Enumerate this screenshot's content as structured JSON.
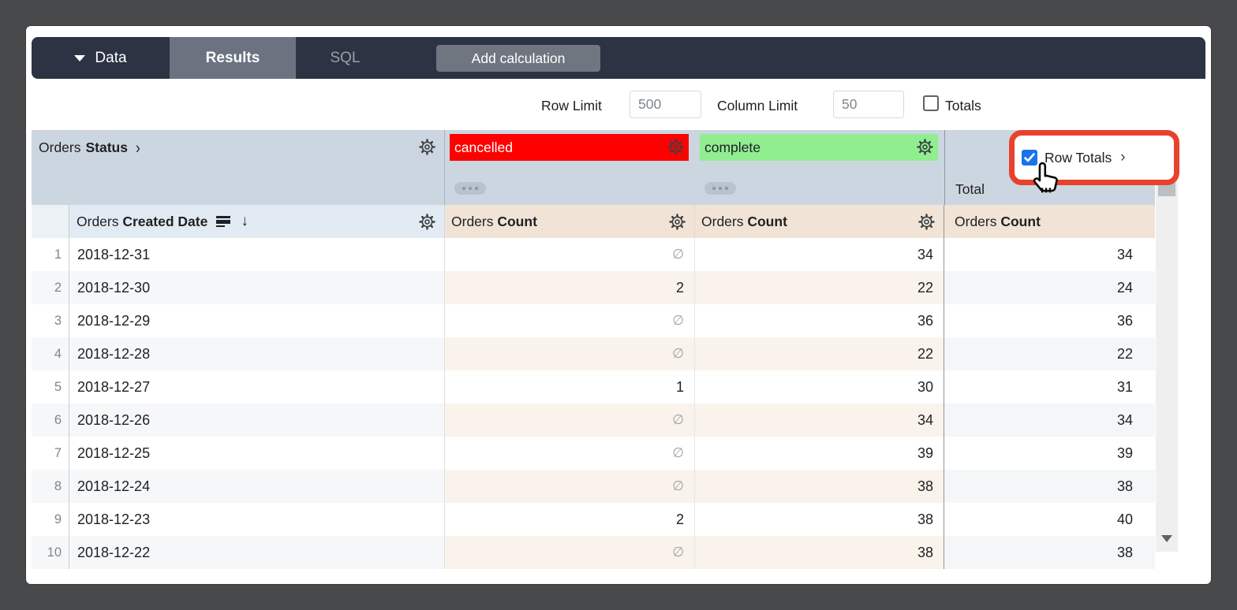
{
  "topbar": {
    "data_tab": {
      "label": "Data"
    },
    "results_tab": {
      "label": "Results",
      "active": true
    },
    "sql_tab": {
      "label": "SQL"
    },
    "add_calculation": {
      "label": "Add calculation"
    }
  },
  "controls": {
    "row_limit": {
      "label": "Row Limit",
      "value": "500"
    },
    "column_limit": {
      "label": "Column Limit",
      "value": "50"
    },
    "totals": {
      "label": "Totals",
      "checked": false
    },
    "row_totals": {
      "label": "Row Totals",
      "checked": true,
      "chevron": "›"
    },
    "annotation": {
      "type": "highlight-box",
      "color": "#e8412e",
      "cursor": "pointing-hand"
    }
  },
  "table": {
    "pivot_field": {
      "prefix": "Orders",
      "name": "Status",
      "chevron": "›"
    },
    "row_field": {
      "prefix": "Orders",
      "name": "Created Date",
      "sort": "descending",
      "sort_arrow": "↓"
    },
    "measure": {
      "prefix": "Orders",
      "name": "Count"
    },
    "pivot_values": [
      {
        "label": "cancelled",
        "background": "#ff0000",
        "text_color": "#ffffff"
      },
      {
        "label": "complete",
        "background": "#90ee90",
        "text_color": "#202124"
      }
    ],
    "total_column_label": "Total",
    "null_symbol": "∅",
    "columns": [
      "row_number",
      "Orders Created Date",
      "cancelled - Orders Count",
      "complete - Orders Count",
      "Total - Orders Count"
    ],
    "rows": [
      {
        "n": "1",
        "date": "2018-12-31",
        "cancelled": null,
        "complete": "34",
        "total": "34"
      },
      {
        "n": "2",
        "date": "2018-12-30",
        "cancelled": "2",
        "complete": "22",
        "total": "24"
      },
      {
        "n": "3",
        "date": "2018-12-29",
        "cancelled": null,
        "complete": "36",
        "total": "36"
      },
      {
        "n": "4",
        "date": "2018-12-28",
        "cancelled": null,
        "complete": "22",
        "total": "22"
      },
      {
        "n": "5",
        "date": "2018-12-27",
        "cancelled": "1",
        "complete": "30",
        "total": "31"
      },
      {
        "n": "6",
        "date": "2018-12-26",
        "cancelled": null,
        "complete": "34",
        "total": "34"
      },
      {
        "n": "7",
        "date": "2018-12-25",
        "cancelled": null,
        "complete": "39",
        "total": "39"
      },
      {
        "n": "8",
        "date": "2018-12-24",
        "cancelled": null,
        "complete": "38",
        "total": "38"
      },
      {
        "n": "9",
        "date": "2018-12-23",
        "cancelled": "2",
        "complete": "38",
        "total": "40"
      },
      {
        "n": "10",
        "date": "2018-12-22",
        "cancelled": null,
        "complete": "38",
        "total": "38"
      }
    ],
    "colors": {
      "pivot_band": "#ccd6e0",
      "dimension_header": "#e2ebf3",
      "measure_header": "#f1e4d6",
      "even_row_dimension": "#f6f7f9",
      "even_row_measure": "#faf3ec",
      "even_row_total": "#f4f6f8"
    }
  }
}
